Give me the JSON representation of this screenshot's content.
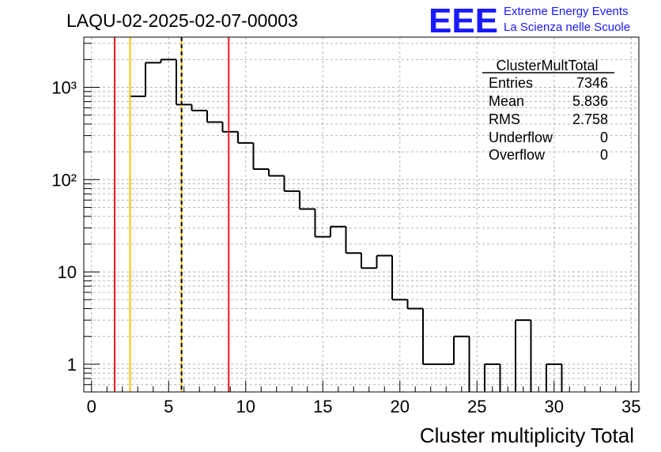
{
  "header": {
    "title": "LAQU-02-2025-02-07-00003",
    "logo_text": "EEE",
    "logo_line1": "Extreme Energy Events",
    "logo_line2": "La Scienza nelle Scuole",
    "logo_color": "#1a1aff"
  },
  "stats": {
    "title": "ClusterMultTotal",
    "rows": [
      {
        "label": "Entries",
        "value": "7346"
      },
      {
        "label": "Mean",
        "value": "5.836"
      },
      {
        "label": "RMS",
        "value": "2.758"
      },
      {
        "label": "Underflow",
        "value": "0"
      },
      {
        "label": "Overflow",
        "value": "0"
      }
    ]
  },
  "chart_data": {
    "type": "histogram",
    "title": "LAQU-02-2025-02-07-00003",
    "xlabel": "Cluster multiplicity Total",
    "ylabel": "",
    "log_y": true,
    "xlim": [
      -0.5,
      35.5
    ],
    "ylim": [
      0.5,
      3500
    ],
    "grid": true,
    "x_ticks": [
      0,
      5,
      10,
      15,
      20,
      25,
      30,
      35
    ],
    "x_tick_labels": [
      "0",
      "5",
      "10",
      "15",
      "20",
      "25",
      "30",
      "35"
    ],
    "y_ticks": [
      1,
      10,
      100,
      1000
    ],
    "y_tick_labels": [
      "1",
      "10",
      "10²",
      "10³"
    ],
    "bin_width": 1,
    "bin_centers": [
      3,
      4,
      5,
      6,
      7,
      8,
      9,
      10,
      11,
      12,
      13,
      14,
      15,
      16,
      17,
      18,
      19,
      20,
      21,
      22,
      23,
      24,
      25,
      26,
      27,
      28,
      29,
      30
    ],
    "values": [
      800,
      1850,
      2000,
      650,
      560,
      420,
      330,
      250,
      130,
      110,
      75,
      48,
      24,
      31,
      16,
      11,
      15,
      5,
      4,
      1,
      1,
      2,
      0,
      1,
      0,
      3,
      0,
      1
    ],
    "vertical_lines": [
      {
        "x": 1.5,
        "color": "#e8161b"
      },
      {
        "x": 2.5,
        "color": "#f5c400"
      },
      {
        "x": 5.84,
        "color": "#f5c400"
      },
      {
        "x": 5.84,
        "color": "#000000",
        "dashed": true
      },
      {
        "x": 8.9,
        "color": "#e8161b"
      }
    ]
  }
}
